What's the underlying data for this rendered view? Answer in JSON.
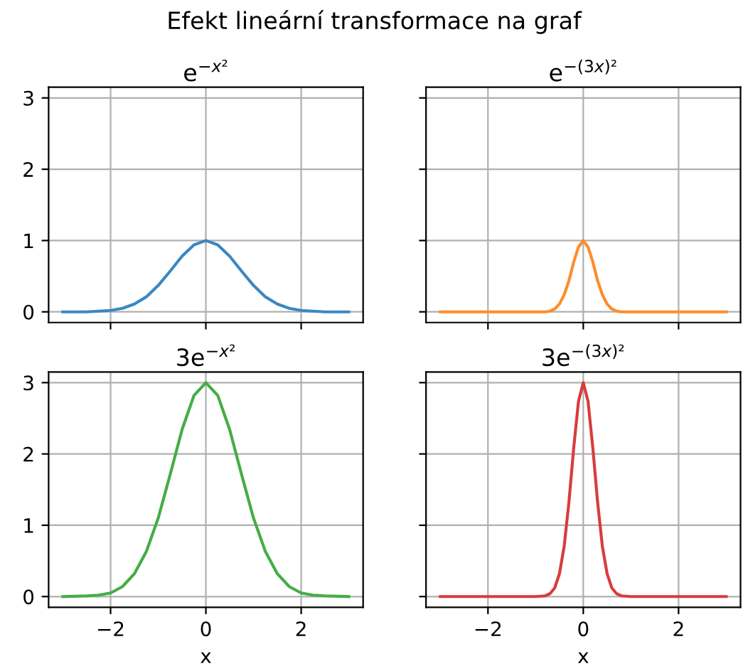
{
  "chart_data": [
    {
      "type": "line",
      "title": "e$^{−x²}$",
      "annotations": [
        "Efekt lineární transformace na graf"
      ],
      "tick_labels": "y",
      "grid": true,
      "xlim": [
        -3.3,
        3.3
      ],
      "ylim": [
        -0.15,
        3.15
      ],
      "xticks": [
        -2,
        0,
        2
      ],
      "yticks": [
        0,
        1,
        2,
        3
      ],
      "series": [
        {
          "color": "#3a88c2",
          "x": [
            -3,
            -2.5,
            -2.25,
            -2,
            -1.75,
            -1.5,
            -1.25,
            -1,
            -0.75,
            -0.5,
            -0.25,
            0,
            0.25,
            0.5,
            0.75,
            1,
            1.25,
            1.5,
            1.75,
            2,
            2.25,
            2.5,
            3
          ],
          "values": [
            0,
            0,
            0.01,
            0.02,
            0.05,
            0.11,
            0.21,
            0.37,
            0.57,
            0.78,
            0.94,
            1,
            0.94,
            0.78,
            0.57,
            0.37,
            0.21,
            0.11,
            0.05,
            0.02,
            0.01,
            0,
            0
          ]
        }
      ]
    },
    {
      "type": "line",
      "title": "e$^{−(3x)²}$",
      "tick_labels": false,
      "grid": true,
      "xlim": [
        -3.3,
        3.3
      ],
      "ylim": [
        -0.15,
        3.15
      ],
      "xticks": [
        -2,
        0,
        2
      ],
      "yticks": [
        0,
        1,
        2,
        3
      ],
      "series": [
        {
          "color": "#ff8c2b",
          "x": [
            -3,
            -1,
            -0.8,
            -0.7,
            -0.6,
            -0.5,
            -0.4,
            -0.3,
            -0.2,
            -0.1,
            0,
            0.1,
            0.2,
            0.3,
            0.4,
            0.5,
            0.6,
            0.7,
            0.8,
            1,
            3
          ],
          "values": [
            0,
            0,
            0,
            0.01,
            0.04,
            0.11,
            0.24,
            0.44,
            0.7,
            0.91,
            1,
            0.91,
            0.7,
            0.44,
            0.24,
            0.11,
            0.04,
            0.01,
            0,
            0,
            0
          ]
        }
      ]
    },
    {
      "type": "line",
      "title": "3e$^{−x²}$",
      "xlabel": "x",
      "grid": true,
      "xlim": [
        -3.3,
        3.3
      ],
      "ylim": [
        -0.15,
        3.15
      ],
      "xticks": [
        -2,
        0,
        2
      ],
      "yticks": [
        0,
        1,
        2,
        3
      ],
      "series": [
        {
          "color": "#45ad45",
          "x": [
            -3,
            -2.5,
            -2.25,
            -2,
            -1.75,
            -1.5,
            -1.25,
            -1,
            -0.75,
            -0.5,
            -0.25,
            0,
            0.25,
            0.5,
            0.75,
            1,
            1.25,
            1.5,
            1.75,
            2,
            2.25,
            2.5,
            3
          ],
          "values": [
            0,
            0.01,
            0.02,
            0.05,
            0.14,
            0.32,
            0.63,
            1.1,
            1.71,
            2.34,
            2.82,
            3,
            2.82,
            2.34,
            1.71,
            1.1,
            0.63,
            0.32,
            0.14,
            0.05,
            0.02,
            0.01,
            0
          ]
        }
      ]
    },
    {
      "type": "line",
      "title": "3e$^{−(3x)²}$",
      "xlabel": "x",
      "tick_labels": "x",
      "grid": true,
      "xlim": [
        -3.3,
        3.3
      ],
      "ylim": [
        -0.15,
        3.15
      ],
      "xticks": [
        -2,
        0,
        2
      ],
      "yticks": [
        0,
        1,
        2,
        3
      ],
      "series": [
        {
          "color": "#d83c3c",
          "x": [
            -3,
            -1,
            -0.8,
            -0.7,
            -0.6,
            -0.5,
            -0.4,
            -0.3,
            -0.2,
            -0.1,
            0,
            0.1,
            0.2,
            0.3,
            0.4,
            0.5,
            0.6,
            0.7,
            0.8,
            1,
            3
          ],
          "values": [
            0,
            0,
            0.01,
            0.04,
            0.12,
            0.32,
            0.71,
            1.33,
            2.09,
            2.74,
            3,
            2.74,
            2.09,
            1.33,
            0.71,
            0.32,
            0.12,
            0.04,
            0.01,
            0,
            0
          ]
        }
      ]
    }
  ]
}
